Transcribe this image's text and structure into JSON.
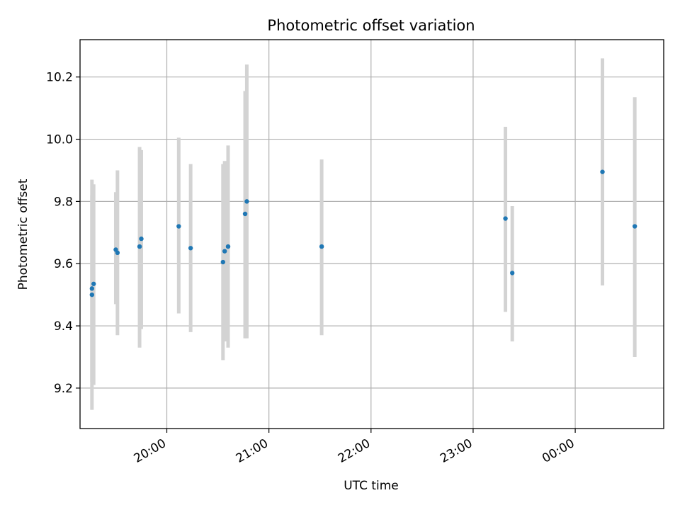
{
  "chart_data": {
    "type": "scatter",
    "title": "Photometric offset variation",
    "xlabel": "UTC time",
    "ylabel": "Photometric offset",
    "x_axis": "time",
    "xlim": [
      "19:09",
      "00:52"
    ],
    "ylim": [
      9.07,
      10.32
    ],
    "x_ticks": [
      "20:00",
      "21:00",
      "22:00",
      "23:00",
      "00:00"
    ],
    "y_ticks": [
      9.2,
      9.4,
      9.6,
      9.8,
      10.0,
      10.2
    ],
    "y_tick_labels": [
      "9.2",
      "9.4",
      "9.6",
      "9.8",
      "10.0",
      "10.2"
    ],
    "x_tick_rotation_deg": 30,
    "grid": true,
    "legend": "none",
    "colors": {
      "point": "#1f77b4",
      "errorbar": "#d3d3d3",
      "grid": "#b0b0b0"
    },
    "points": [
      {
        "x": "19:16",
        "y": 9.5,
        "ylow": 9.13,
        "yhigh": 9.87
      },
      {
        "x": "19:16",
        "y": 9.52,
        "ylow": 9.22,
        "yhigh": 9.82
      },
      {
        "x": "19:17",
        "y": 9.535,
        "ylow": 9.21,
        "yhigh": 9.855
      },
      {
        "x": "19:30",
        "y": 9.645,
        "ylow": 9.47,
        "yhigh": 9.83
      },
      {
        "x": "19:31",
        "y": 9.635,
        "ylow": 9.37,
        "yhigh": 9.9
      },
      {
        "x": "19:44",
        "y": 9.655,
        "ylow": 9.33,
        "yhigh": 9.975
      },
      {
        "x": "19:45",
        "y": 9.68,
        "ylow": 9.39,
        "yhigh": 9.965
      },
      {
        "x": "20:07",
        "y": 9.72,
        "ylow": 9.44,
        "yhigh": 10.005
      },
      {
        "x": "20:14",
        "y": 9.65,
        "ylow": 9.38,
        "yhigh": 9.92
      },
      {
        "x": "20:33",
        "y": 9.605,
        "ylow": 9.29,
        "yhigh": 9.92
      },
      {
        "x": "20:34",
        "y": 9.64,
        "ylow": 9.35,
        "yhigh": 9.93
      },
      {
        "x": "20:36",
        "y": 9.655,
        "ylow": 9.33,
        "yhigh": 9.98
      },
      {
        "x": "20:46",
        "y": 9.76,
        "ylow": 9.36,
        "yhigh": 10.155
      },
      {
        "x": "20:47",
        "y": 9.8,
        "ylow": 9.36,
        "yhigh": 10.24
      },
      {
        "x": "21:31",
        "y": 9.655,
        "ylow": 9.37,
        "yhigh": 9.935
      },
      {
        "x": "23:19",
        "y": 9.745,
        "ylow": 9.445,
        "yhigh": 10.04
      },
      {
        "x": "23:23",
        "y": 9.57,
        "ylow": 9.35,
        "yhigh": 9.785
      },
      {
        "x": "00:16",
        "y": 9.895,
        "ylow": 9.53,
        "yhigh": 10.26
      },
      {
        "x": "00:35",
        "y": 9.72,
        "ylow": 9.3,
        "yhigh": 10.135
      }
    ]
  }
}
